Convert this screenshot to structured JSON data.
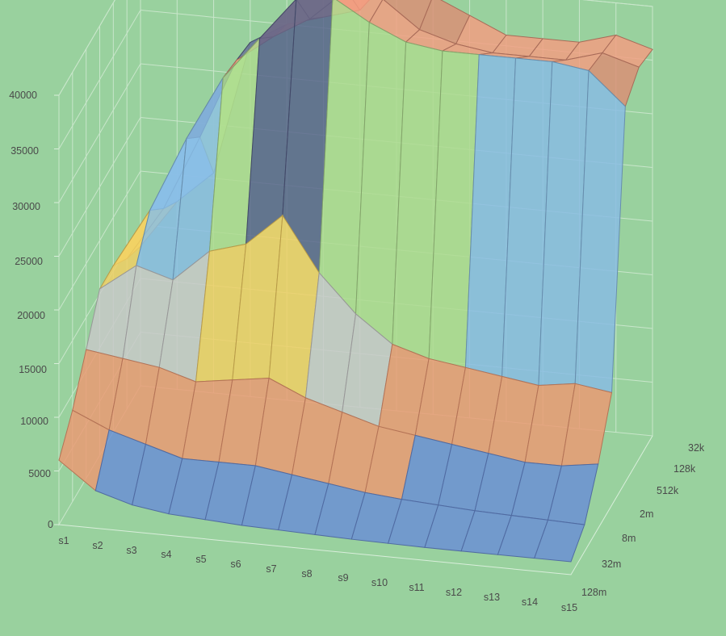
{
  "chart_data": {
    "type": "surface",
    "title": "",
    "xlabel": "",
    "ylabel": "",
    "zlabel": "",
    "legend": "none",
    "grid": true,
    "zlim": [
      0,
      40000
    ],
    "z_ticks": [
      "0",
      "5000",
      "10000",
      "15000",
      "20000",
      "25000",
      "30000",
      "35000",
      "40000"
    ],
    "x_categories": [
      "s1",
      "s2",
      "s3",
      "s4",
      "s5",
      "s6",
      "s7",
      "s8",
      "s9",
      "s10",
      "s11",
      "s12",
      "s13",
      "s14",
      "s15"
    ],
    "y_categories": [
      "32k",
      "128k",
      "512k",
      "2m",
      "8m",
      "32m",
      "128m"
    ],
    "band_colors": [
      "#6f95e0",
      "#f8a077",
      "#d3d3d3",
      "#ffd966",
      "#8fc5f0",
      "#b6e594",
      "#5b6591",
      "#e8957a"
    ],
    "values": [
      [
        13000,
        17500,
        20500,
        33000,
        35000,
        36000,
        37000,
        41000,
        39000,
        37500,
        36000,
        36000,
        36000,
        37000,
        36000
      ],
      [
        14000,
        19000,
        26000,
        33500,
        36000,
        38000,
        41000,
        40500,
        38000,
        37000,
        36500,
        36500,
        36500,
        37500,
        36500
      ],
      [
        15500,
        21000,
        28000,
        34000,
        38000,
        42000,
        42500,
        40500,
        39000,
        38500,
        38500,
        38500,
        38500,
        38000,
        35000
      ],
      [
        15500,
        18000,
        17000,
        20000,
        21000,
        24000,
        19000,
        15500,
        13000,
        12000,
        11500,
        11000,
        10500,
        11000,
        10500
      ],
      [
        12000,
        11500,
        11000,
        10000,
        10500,
        11000,
        9500,
        8500,
        7500,
        7000,
        6500,
        6000,
        5500,
        5500,
        6000
      ],
      [
        8500,
        7000,
        6000,
        5000,
        5000,
        5000,
        4500,
        4000,
        3500,
        3200,
        3000,
        2800,
        2700,
        2600,
        2500
      ],
      [
        6000,
        3500,
        2500,
        2000,
        1800,
        1600,
        1500,
        1400,
        1300,
        1250,
        1200,
        1200,
        1200,
        1200,
        1200
      ]
    ]
  }
}
